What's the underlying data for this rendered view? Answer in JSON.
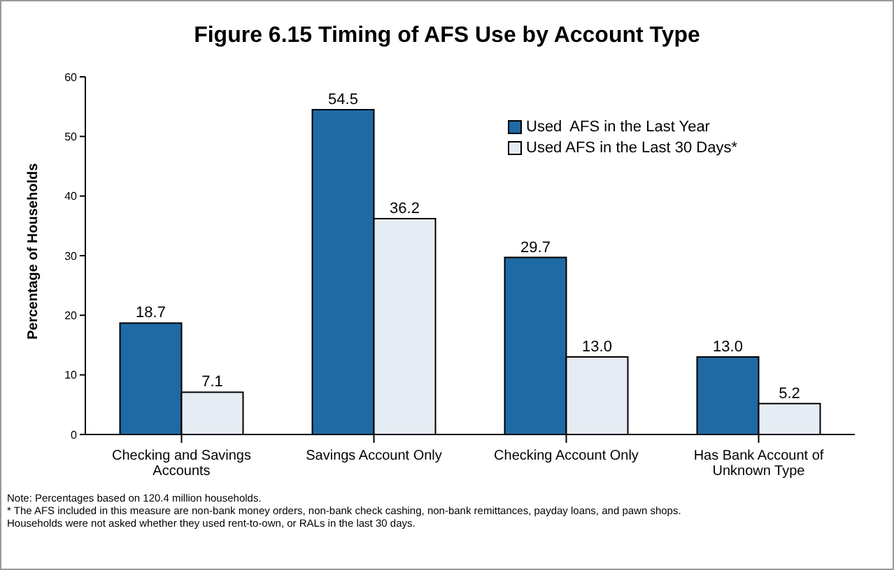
{
  "chart_data": {
    "type": "bar",
    "title": "Figure 6.15  Timing of AFS Use by Account Type",
    "ylabel": "Percentage of Households",
    "categories": [
      "Checking and Savings Accounts",
      "Savings Account Only",
      "Checking Account Only",
      "Has Bank Account of Unknown Type"
    ],
    "series": [
      {
        "name": "Used  AFS in the Last Year",
        "color": "#1f6aa5",
        "values": [
          18.7,
          54.5,
          29.7,
          13.0
        ]
      },
      {
        "name": "Used AFS in the Last 30 Days*",
        "color": "#e6ecf3",
        "values": [
          7.1,
          36.2,
          13.0,
          5.2
        ]
      }
    ],
    "value_labels": [
      [
        "18.7",
        "54.5",
        "29.7",
        "13.0"
      ],
      [
        "7.1",
        "36.2",
        "13.0",
        "5.2"
      ]
    ],
    "ylim": [
      0,
      60
    ],
    "yticks": [
      0,
      10,
      20,
      30,
      40,
      50,
      60
    ],
    "grid": false,
    "legend": "top right",
    "annotations": [
      "Note: Percentages based on 120.4 million households.",
      "* The AFS included in this measure are non-bank money orders, non-bank check cashing, non-bank remittances, payday loans, and pawn shops.",
      "Households were not asked whether they used rent-to-own, or RALs in the last 30 days."
    ]
  }
}
